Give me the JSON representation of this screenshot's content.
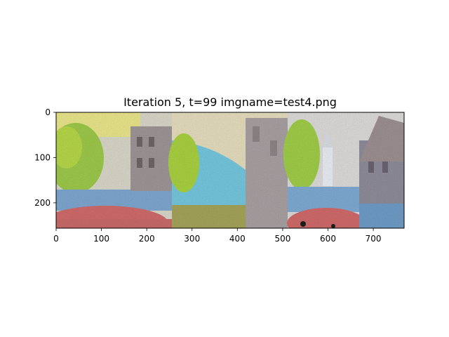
{
  "chart_data": {
    "type": "image",
    "title": "Iteration 5, t=99 imgname=test4.png",
    "xlabel": "",
    "ylabel": "",
    "xlim": [
      0,
      768
    ],
    "ylim": [
      256,
      0
    ],
    "x_ticks": [
      0,
      100,
      200,
      300,
      400,
      500,
      600,
      700
    ],
    "y_ticks": [
      0,
      100,
      200
    ],
    "panels": [
      {
        "x_range": [
          0,
          256
        ],
        "scene": "street with red umbrella, tree and building (noisy)"
      },
      {
        "x_range": [
          256,
          512
        ],
        "scene": "tree, blue sky and stone tower (noisy)"
      },
      {
        "x_range": [
          512,
          768
        ],
        "scene": "church spire, buildings and red umbrella (noisy)"
      }
    ],
    "grid": false
  }
}
